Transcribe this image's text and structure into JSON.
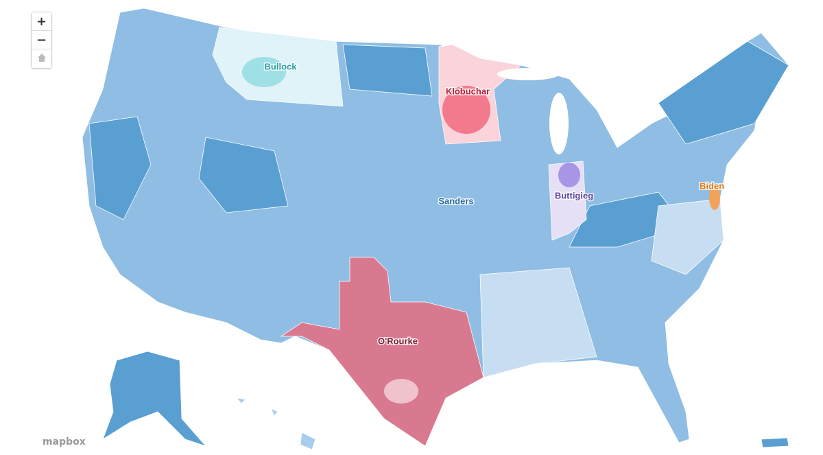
{
  "map": {
    "labels": [
      "Bullock",
      "Klobuchar",
      "Sanders",
      "Buttigieg",
      "Biden",
      "O'Rourke"
    ]
  },
  "controls": {
    "zoom_in": "+",
    "zoom_out": "−"
  },
  "attribution": "mapbox"
}
